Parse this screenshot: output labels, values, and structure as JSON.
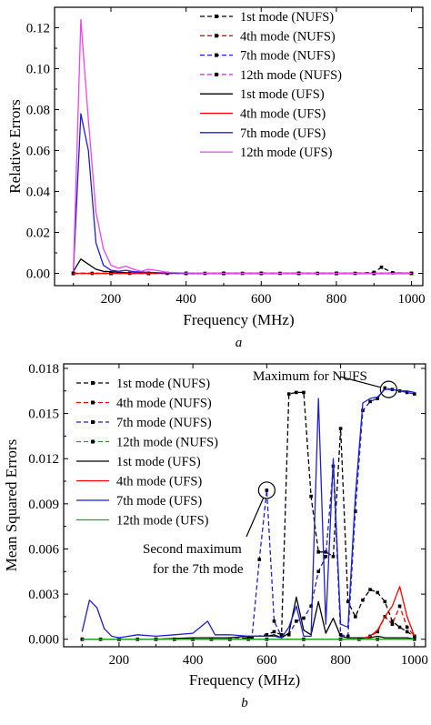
{
  "chart_data": [
    {
      "type": "line",
      "panel_label": "a",
      "xlabel": "Frequency (MHz)",
      "ylabel": "Relative Errors",
      "xlim": [
        50,
        1030
      ],
      "ylim": [
        -0.006,
        0.13
      ],
      "xticks": [
        200,
        400,
        600,
        800,
        1000
      ],
      "yticks": [
        0.0,
        0.02,
        0.04,
        0.06,
        0.08,
        0.1,
        0.12
      ],
      "ytick_labels": [
        "0.00",
        "0.02",
        "0.04",
        "0.06",
        "0.08",
        "0.10",
        "0.12"
      ],
      "legend_position": "top-right",
      "grid": false,
      "series": [
        {
          "name": "1st mode (NUFS)",
          "color": "#000000",
          "style": "dashed",
          "marker": "square",
          "x": [
            100,
            150,
            200,
            250,
            300,
            350,
            400,
            450,
            500,
            550,
            600,
            650,
            700,
            750,
            800,
            850,
            900,
            920,
            950,
            1000
          ],
          "y": [
            0,
            0,
            0,
            0,
            0,
            0,
            0,
            0,
            0,
            0,
            0,
            0,
            0,
            0,
            0,
            0,
            0.0005,
            0.003,
            0.0003,
            0
          ]
        },
        {
          "name": "4th mode (NUFS)",
          "color": "#ff0000",
          "style": "dashed",
          "marker": "square",
          "x": [
            100,
            200,
            300,
            400,
            500,
            600,
            700,
            800,
            900,
            1000
          ],
          "y": [
            0,
            0,
            0,
            0,
            0,
            0,
            0,
            0,
            0,
            0
          ]
        },
        {
          "name": "7th mode (NUFS)",
          "color": "#1f1fd6",
          "style": "dashed",
          "marker": "square",
          "x": [
            100,
            200,
            300,
            400,
            500,
            600,
            700,
            800,
            900,
            1000
          ],
          "y": [
            0,
            0,
            0,
            0,
            0,
            0,
            0,
            0,
            0,
            0
          ]
        },
        {
          "name": "12th mode (NUFS)",
          "color": "#e020e0",
          "style": "dashed",
          "marker": "square",
          "x": [
            100,
            200,
            300,
            400,
            500,
            600,
            700,
            800,
            900,
            1000
          ],
          "y": [
            0,
            0,
            0,
            0,
            0,
            0,
            0,
            0,
            0,
            0
          ]
        },
        {
          "name": "1st mode (UFS)",
          "color": "#000000",
          "style": "solid",
          "marker": "none",
          "x": [
            100,
            120,
            140,
            160,
            180,
            200,
            220,
            240,
            260,
            300,
            400,
            500,
            600,
            700,
            800,
            900,
            1000
          ],
          "y": [
            0.001,
            0.007,
            0.0045,
            0.002,
            0.001,
            0.0008,
            0.0005,
            0.0003,
            0.0002,
            0.0001,
            0,
            0,
            0,
            0,
            0,
            0,
            0
          ]
        },
        {
          "name": "4th mode (UFS)",
          "color": "#ff0000",
          "style": "solid",
          "marker": "none",
          "x": [
            100,
            200,
            300,
            400,
            500,
            600,
            700,
            800,
            900,
            1000
          ],
          "y": [
            0,
            0,
            0,
            0,
            0,
            0,
            0,
            0,
            0,
            0
          ]
        },
        {
          "name": "7th mode (UFS)",
          "color": "#1f1fd6",
          "style": "solid",
          "marker": "none",
          "x": [
            100,
            120,
            140,
            160,
            180,
            200,
            220,
            240,
            260,
            300,
            350,
            400,
            500,
            600,
            700,
            800,
            900,
            1000
          ],
          "y": [
            0.001,
            0.078,
            0.06,
            0.015,
            0.004,
            0.0015,
            0.001,
            0.0015,
            0.0008,
            0.0005,
            0.0002,
            0,
            0,
            0,
            0,
            0,
            0,
            0
          ]
        },
        {
          "name": "12th mode (UFS)",
          "color": "#ee44ee",
          "style": "solid",
          "marker": "none",
          "x": [
            100,
            120,
            140,
            160,
            180,
            200,
            220,
            240,
            260,
            280,
            300,
            320,
            350,
            400,
            500,
            600,
            700,
            800,
            900,
            1000
          ],
          "y": [
            0.001,
            0.124,
            0.075,
            0.03,
            0.012,
            0.004,
            0.0025,
            0.0035,
            0.002,
            0.001,
            0.002,
            0.0015,
            0.0005,
            0.0002,
            0,
            0,
            0,
            0,
            0,
            0
          ]
        }
      ]
    },
    {
      "type": "line",
      "panel_label": "b",
      "xlabel": "Frequency (MHz)",
      "ylabel": "Mean Squared Errors",
      "xlim": [
        50,
        1030
      ],
      "ylim": [
        -0.0005,
        0.0183
      ],
      "xticks": [
        200,
        400,
        600,
        800,
        1000
      ],
      "yticks": [
        0.0,
        0.003,
        0.006,
        0.009,
        0.012,
        0.015,
        0.018
      ],
      "ytick_labels": [
        "0.000",
        "0.003",
        "0.006",
        "0.009",
        "0.012",
        "0.015",
        "0.018"
      ],
      "legend_position": "top-left",
      "grid": false,
      "annotations": [
        {
          "text_lines": [
            "Maximum for NUFS"
          ],
          "point": [
            930,
            0.0166
          ]
        },
        {
          "text_lines": [
            "Second maximum",
            "for the 7th mode"
          ],
          "point": [
            600,
            0.0099
          ]
        }
      ],
      "series": [
        {
          "name": "1st mode (NUFS)",
          "color": "#000000",
          "style": "dashed",
          "marker": "square",
          "x": [
            100,
            150,
            200,
            250,
            300,
            350,
            400,
            450,
            500,
            550,
            600,
            620,
            640,
            660,
            680,
            700,
            720,
            740,
            760,
            780,
            800,
            820,
            840,
            860,
            880,
            900,
            920,
            940,
            960,
            980,
            1000
          ],
          "y": [
            0,
            0,
            0,
            0,
            0,
            0,
            0,
            0,
            0,
            0.0001,
            0.0003,
            0.0005,
            0.0003,
            0.0163,
            0.0164,
            0.0164,
            0.0095,
            0.0058,
            0.0058,
            0.0055,
            0.014,
            0.0025,
            0.0015,
            0.0026,
            0.0033,
            0.0031,
            0.0025,
            0.0012,
            0.0008,
            0.0005,
            0.0002
          ]
        },
        {
          "name": "4th mode (NUFS)",
          "color": "#ff0000",
          "style": "dashed",
          "marker": "square",
          "x": [
            100,
            200,
            300,
            400,
            500,
            600,
            700,
            800,
            850,
            880,
            900,
            920,
            940,
            960,
            980,
            1000
          ],
          "y": [
            0,
            0,
            0,
            0,
            0,
            0,
            0,
            0,
            0,
            0.0002,
            0.0005,
            0.0015,
            0.001,
            0.0022,
            0.0008,
            0.0002
          ]
        },
        {
          "name": "7th mode (NUFS)",
          "color": "#1f1fd6",
          "style": "dashed",
          "marker": "square",
          "x": [
            100,
            150,
            200,
            250,
            300,
            350,
            400,
            450,
            500,
            550,
            560,
            580,
            600,
            620,
            640,
            660,
            680,
            700,
            720,
            740,
            760,
            780,
            800,
            820,
            840,
            860,
            880,
            900,
            920,
            940,
            960,
            980,
            1000
          ],
          "y": [
            0,
            0,
            0,
            0,
            0,
            0,
            0,
            0,
            0,
            0,
            0.0001,
            0.0053,
            0.0099,
            0.0012,
            0.0002,
            0.0003,
            0.0012,
            0.0014,
            0.0022,
            0.0045,
            0.0055,
            0.0115,
            0.0003,
            0.0002,
            0.0085,
            0.0152,
            0.0158,
            0.016,
            0.0167,
            0.0166,
            0.0165,
            0.0164,
            0.0163
          ]
        },
        {
          "name": "12th mode (NUFS)",
          "color": "#2a9d2a",
          "style": "dashed",
          "marker": "square",
          "x": [
            100,
            200,
            300,
            400,
            500,
            600,
            700,
            800,
            900,
            1000
          ],
          "y": [
            0,
            0,
            0,
            0,
            0,
            0,
            0,
            0,
            0,
            0
          ]
        },
        {
          "name": "1st mode (UFS)",
          "color": "#000000",
          "style": "solid",
          "marker": "none",
          "x": [
            100,
            200,
            300,
            400,
            500,
            550,
            600,
            620,
            640,
            660,
            680,
            700,
            720,
            740,
            760,
            780,
            800,
            820,
            840,
            860,
            880,
            900,
            920,
            940,
            960,
            980,
            1000
          ],
          "y": [
            0,
            0,
            0,
            0.0001,
            0.0001,
            0.0002,
            0.0002,
            0.0003,
            0.0001,
            0.0004,
            0.0028,
            0.0006,
            0.0003,
            0.0025,
            0.0004,
            0.0014,
            0.0002,
            0.0001,
            0.0001,
            0.0001,
            0.0001,
            0.0002,
            0.0001,
            0.0001,
            0.0001,
            0.0001,
            0
          ]
        },
        {
          "name": "4th mode (UFS)",
          "color": "#ff0000",
          "style": "solid",
          "marker": "none",
          "x": [
            100,
            200,
            300,
            400,
            500,
            600,
            700,
            800,
            860,
            880,
            900,
            920,
            940,
            960,
            980,
            1000
          ],
          "y": [
            0,
            0,
            0,
            0,
            0,
            0,
            0,
            0,
            0,
            0.0002,
            0.0006,
            0.0015,
            0.0022,
            0.0035,
            0.0015,
            0.0002
          ]
        },
        {
          "name": "7th mode (UFS)",
          "color": "#1f1fd6",
          "style": "solid",
          "marker": "none",
          "x": [
            100,
            120,
            140,
            160,
            180,
            200,
            250,
            300,
            350,
            400,
            440,
            460,
            500,
            550,
            600,
            620,
            640,
            660,
            680,
            700,
            720,
            740,
            760,
            780,
            800,
            820,
            840,
            860,
            880,
            900,
            920,
            940,
            960,
            980,
            1000
          ],
          "y": [
            0.0005,
            0.0026,
            0.0021,
            0.0007,
            0.0002,
            0.0001,
            0.0003,
            0.0002,
            0.0003,
            0.0004,
            0.0012,
            0.0003,
            0.0003,
            0.0002,
            0.0002,
            0.0002,
            0.0001,
            0.0008,
            0.0022,
            0.0002,
            0.0002,
            0.016,
            0.001,
            0.012,
            0.001,
            0.0008,
            0.0095,
            0.0157,
            0.016,
            0.0161,
            0.0166,
            0.0166,
            0.0165,
            0.0165,
            0.0164
          ]
        },
        {
          "name": "12th mode (UFS)",
          "color": "#2a9d2a",
          "style": "solid",
          "marker": "none",
          "x": [
            100,
            200,
            300,
            400,
            500,
            600,
            700,
            800,
            900,
            1000
          ],
          "y": [
            0,
            0,
            0,
            0,
            0,
            0,
            0,
            0,
            0,
            0
          ]
        }
      ]
    }
  ]
}
